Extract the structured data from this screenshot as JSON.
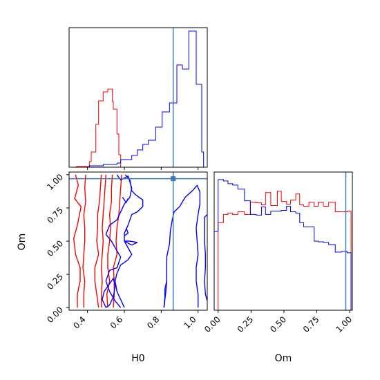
{
  "chart_data": {
    "type": "corner",
    "params": [
      "H0",
      "Om"
    ],
    "truth": {
      "H0": 0.865,
      "Om": 0.97,
      "color": "#3b78b0"
    },
    "series": [
      {
        "color": "#ff0000"
      },
      {
        "color": "#0000ff"
      }
    ],
    "hist_H0": {
      "type": "histogram",
      "range": [
        0.3,
        1.05
      ],
      "ylim": [
        0,
        1
      ],
      "bins": [
        {
          "x0": 0.3,
          "x1": 0.34,
          "red": 0.0,
          "blue": 0.0
        },
        {
          "x0": 0.34,
          "x1": 0.41,
          "red": 0.005,
          "blue": 0.0
        },
        {
          "x0": 0.41,
          "x1": 0.42,
          "red": 0.04,
          "blue": 0.01
        },
        {
          "x0": 0.42,
          "x1": 0.445,
          "red": 0.11,
          "blue": 0.01
        },
        {
          "x0": 0.445,
          "x1": 0.46,
          "red": 0.31,
          "blue": 0.01
        },
        {
          "x0": 0.46,
          "x1": 0.485,
          "red": 0.48,
          "blue": 0.01
        },
        {
          "x0": 0.485,
          "x1": 0.51,
          "red": 0.545,
          "blue": 0.02
        },
        {
          "x0": 0.51,
          "x1": 0.535,
          "red": 0.565,
          "blue": 0.02
        },
        {
          "x0": 0.535,
          "x1": 0.54,
          "red": 0.475,
          "blue": 0.02
        },
        {
          "x0": 0.54,
          "x1": 0.56,
          "red": 0.42,
          "blue": 0.02
        },
        {
          "x0": 0.56,
          "x1": 0.57,
          "red": 0.24,
          "blue": 0.03
        },
        {
          "x0": 0.57,
          "x1": 0.58,
          "red": 0.09,
          "blue": 0.03
        },
        {
          "x0": 0.58,
          "x1": 0.61,
          "red": 0.0,
          "blue": 0.055
        },
        {
          "x0": 0.61,
          "x1": 0.64,
          "red": 0.0,
          "blue": 0.055
        },
        {
          "x0": 0.64,
          "x1": 0.67,
          "red": 0.0,
          "blue": 0.085
        },
        {
          "x0": 0.67,
          "x1": 0.7,
          "red": 0.0,
          "blue": 0.125
        },
        {
          "x0": 0.7,
          "x1": 0.73,
          "red": 0.0,
          "blue": 0.165
        },
        {
          "x0": 0.73,
          "x1": 0.77,
          "red": 0.0,
          "blue": 0.195
        },
        {
          "x0": 0.77,
          "x1": 0.805,
          "red": 0.0,
          "blue": 0.29
        },
        {
          "x0": 0.805,
          "x1": 0.845,
          "red": 0.0,
          "blue": 0.4
        },
        {
          "x0": 0.845,
          "x1": 0.885,
          "red": 0.0,
          "blue": 0.465
        },
        {
          "x0": 0.885,
          "x1": 0.915,
          "red": 0.0,
          "blue": 0.74
        },
        {
          "x0": 0.915,
          "x1": 0.95,
          "red": 0.0,
          "blue": 0.71
        },
        {
          "x0": 0.95,
          "x1": 0.99,
          "red": 0.0,
          "blue": 0.985
        },
        {
          "x0": 0.99,
          "x1": 1.02,
          "red": 0.0,
          "blue": 0.6
        },
        {
          "x0": 1.02,
          "x1": 1.03,
          "red": 0.0,
          "blue": 0.11
        },
        {
          "x0": 1.03,
          "x1": 1.05,
          "red": 0.0,
          "blue": 0.0
        }
      ]
    },
    "hist_Om": {
      "type": "histogram",
      "range": [
        -0.03,
        1.02
      ],
      "ylim": [
        0,
        1
      ],
      "bins": [
        {
          "x0": -0.03,
          "x1": 0.0,
          "red": 0.0,
          "blue": 0.575
        },
        {
          "x0": 0.0,
          "x1": 0.04,
          "red": 0.64,
          "blue": 0.955
        },
        {
          "x0": 0.04,
          "x1": 0.075,
          "red": 0.7,
          "blue": 0.945
        },
        {
          "x0": 0.075,
          "x1": 0.11,
          "red": 0.71,
          "blue": 0.925
        },
        {
          "x0": 0.11,
          "x1": 0.15,
          "red": 0.7,
          "blue": 0.915
        },
        {
          "x0": 0.15,
          "x1": 0.2,
          "red": 0.72,
          "blue": 0.885
        },
        {
          "x0": 0.2,
          "x1": 0.245,
          "red": 0.7,
          "blue": 0.8
        },
        {
          "x0": 0.245,
          "x1": 0.29,
          "red": 0.79,
          "blue": 0.7
        },
        {
          "x0": 0.29,
          "x1": 0.33,
          "red": 0.785,
          "blue": 0.695
        },
        {
          "x0": 0.33,
          "x1": 0.36,
          "red": 0.77,
          "blue": 0.755
        },
        {
          "x0": 0.36,
          "x1": 0.4,
          "red": 0.86,
          "blue": 0.7
        },
        {
          "x0": 0.4,
          "x1": 0.45,
          "red": 0.765,
          "blue": 0.725
        },
        {
          "x0": 0.45,
          "x1": 0.48,
          "red": 0.87,
          "blue": 0.725
        },
        {
          "x0": 0.48,
          "x1": 0.52,
          "red": 0.795,
          "blue": 0.73
        },
        {
          "x0": 0.52,
          "x1": 0.55,
          "red": 0.775,
          "blue": 0.76
        },
        {
          "x0": 0.55,
          "x1": 0.59,
          "red": 0.805,
          "blue": 0.72
        },
        {
          "x0": 0.59,
          "x1": 0.62,
          "red": 0.85,
          "blue": 0.71
        },
        {
          "x0": 0.62,
          "x1": 0.65,
          "red": 0.77,
          "blue": 0.64
        },
        {
          "x0": 0.65,
          "x1": 0.69,
          "red": 0.76,
          "blue": 0.61
        },
        {
          "x0": 0.69,
          "x1": 0.73,
          "red": 0.79,
          "blue": 0.61
        },
        {
          "x0": 0.73,
          "x1": 0.76,
          "red": 0.76,
          "blue": 0.505
        },
        {
          "x0": 0.76,
          "x1": 0.8,
          "red": 0.79,
          "blue": 0.5
        },
        {
          "x0": 0.8,
          "x1": 0.84,
          "red": 0.76,
          "blue": 0.495
        },
        {
          "x0": 0.84,
          "x1": 0.89,
          "red": 0.79,
          "blue": 0.48
        },
        {
          "x0": 0.89,
          "x1": 0.94,
          "red": 0.72,
          "blue": 0.425
        },
        {
          "x0": 0.94,
          "x1": 0.98,
          "red": 0.72,
          "blue": 0.43
        },
        {
          "x0": 0.98,
          "x1": 1.01,
          "red": 0.725,
          "blue": 0.42
        },
        {
          "x0": 1.01,
          "x1": 1.02,
          "red": 0.0,
          "blue": 0.0
        }
      ]
    },
    "scatter_2d": {
      "type": "contour",
      "xlim": [
        0.3,
        1.05
      ],
      "ylim": [
        -0.02,
        1.02
      ],
      "contours": [
        {
          "series": 0,
          "points": [
            [
              0.335,
              1.0
            ],
            [
              0.35,
              0.92
            ],
            [
              0.33,
              0.82
            ],
            [
              0.365,
              0.76
            ],
            [
              0.345,
              0.62
            ],
            [
              0.325,
              0.52
            ],
            [
              0.335,
              0.4
            ],
            [
              0.36,
              0.3
            ],
            [
              0.36,
              0.2
            ],
            [
              0.345,
              0.1
            ],
            [
              0.345,
              0.0
            ]
          ]
        },
        {
          "series": 0,
          "points": [
            [
              0.39,
              1.0
            ],
            [
              0.385,
              0.9
            ],
            [
              0.39,
              0.8
            ],
            [
              0.38,
              0.7
            ],
            [
              0.385,
              0.6
            ],
            [
              0.385,
              0.5
            ],
            [
              0.38,
              0.4
            ],
            [
              0.375,
              0.3
            ],
            [
              0.385,
              0.2
            ],
            [
              0.38,
              0.1
            ],
            [
              0.38,
              0.0
            ]
          ]
        },
        {
          "series": 0,
          "points": [
            [
              0.475,
              1.0
            ],
            [
              0.47,
              0.9
            ],
            [
              0.465,
              0.8
            ],
            [
              0.455,
              0.7
            ],
            [
              0.455,
              0.6
            ],
            [
              0.45,
              0.5
            ],
            [
              0.46,
              0.4
            ],
            [
              0.44,
              0.3
            ],
            [
              0.44,
              0.2
            ],
            [
              0.45,
              0.1
            ],
            [
              0.46,
              0.0
            ]
          ]
        },
        {
          "series": 0,
          "points": [
            [
              0.5,
              1.0
            ],
            [
              0.495,
              0.9
            ],
            [
              0.49,
              0.8
            ],
            [
              0.485,
              0.7
            ],
            [
              0.48,
              0.6
            ],
            [
              0.485,
              0.5
            ],
            [
              0.48,
              0.4
            ],
            [
              0.475,
              0.3
            ],
            [
              0.48,
              0.2
            ],
            [
              0.475,
              0.1
            ],
            [
              0.475,
              0.0
            ]
          ]
        },
        {
          "series": 0,
          "points": [
            [
              0.535,
              1.0
            ],
            [
              0.53,
              0.9
            ],
            [
              0.53,
              0.8
            ],
            [
              0.52,
              0.7
            ],
            [
              0.525,
              0.6
            ],
            [
              0.52,
              0.5
            ],
            [
              0.51,
              0.4
            ],
            [
              0.51,
              0.3
            ],
            [
              0.52,
              0.2
            ],
            [
              0.505,
              0.1
            ],
            [
              0.51,
              0.0
            ]
          ]
        },
        {
          "series": 0,
          "points": [
            [
              0.585,
              1.0
            ],
            [
              0.58,
              0.9
            ],
            [
              0.575,
              0.8
            ],
            [
              0.57,
              0.7
            ],
            [
              0.56,
              0.6
            ],
            [
              0.555,
              0.5
            ],
            [
              0.56,
              0.4
            ],
            [
              0.54,
              0.3
            ],
            [
              0.545,
              0.2
            ],
            [
              0.545,
              0.1
            ],
            [
              0.54,
              0.0
            ]
          ]
        },
        {
          "series": 1,
          "points": [
            [
              0.56,
              1.0
            ],
            [
              0.58,
              0.96
            ],
            [
              0.62,
              0.99
            ],
            [
              0.64,
              0.9
            ],
            [
              0.63,
              0.83
            ],
            [
              0.6,
              0.78
            ],
            [
              0.58,
              0.72
            ],
            [
              0.56,
              0.66
            ],
            [
              0.52,
              0.62
            ],
            [
              0.5,
              0.55
            ],
            [
              0.53,
              0.5
            ],
            [
              0.55,
              0.45
            ],
            [
              0.58,
              0.38
            ],
            [
              0.56,
              0.3
            ],
            [
              0.52,
              0.28
            ],
            [
              0.5,
              0.2
            ],
            [
              0.52,
              0.12
            ],
            [
              0.55,
              0.05
            ],
            [
              0.58,
              0.0
            ]
          ]
        },
        {
          "series": 1,
          "points": [
            [
              0.605,
              1.0
            ],
            [
              0.63,
              0.96
            ],
            [
              0.64,
              0.88
            ],
            [
              0.66,
              0.85
            ],
            [
              0.7,
              0.81
            ],
            [
              0.7,
              0.76
            ],
            [
              0.67,
              0.72
            ],
            [
              0.64,
              0.7
            ],
            [
              0.62,
              0.62
            ],
            [
              0.6,
              0.56
            ],
            [
              0.6,
              0.5
            ],
            [
              0.62,
              0.45
            ],
            [
              0.64,
              0.4
            ],
            [
              0.62,
              0.36
            ],
            [
              0.58,
              0.32
            ],
            [
              0.56,
              0.26
            ],
            [
              0.55,
              0.2
            ],
            [
              0.56,
              0.12
            ],
            [
              0.58,
              0.06
            ],
            [
              0.6,
              0.0
            ]
          ]
        },
        {
          "series": 1,
          "points": [
            [
              0.5,
              0.0
            ],
            [
              0.48,
              0.06
            ],
            [
              0.49,
              0.12
            ],
            [
              0.52,
              0.18
            ],
            [
              0.54,
              0.22
            ],
            [
              0.55,
              0.16
            ],
            [
              0.54,
              0.08
            ],
            [
              0.52,
              0.02
            ],
            [
              0.5,
              0.0
            ]
          ]
        },
        {
          "series": 1,
          "points": [
            [
              0.6,
              0.5
            ],
            [
              0.63,
              0.5
            ],
            [
              0.67,
              0.49
            ],
            [
              0.64,
              0.47
            ],
            [
              0.6,
              0.5
            ]
          ]
        },
        {
          "series": 1,
          "points": [
            [
              0.61,
              0.6
            ],
            [
              0.62,
              0.56
            ],
            [
              0.6,
              0.54
            ]
          ]
        },
        {
          "series": 1,
          "points": [
            [
              0.59,
              0.83
            ],
            [
              0.61,
              0.79
            ],
            [
              0.62,
              0.82
            ]
          ]
        },
        {
          "series": 1,
          "points": [
            [
              0.815,
              0.0
            ],
            [
              0.82,
              0.06
            ],
            [
              0.825,
              0.12
            ],
            [
              0.83,
              0.2
            ],
            [
              0.83,
              0.28
            ],
            [
              0.83,
              0.38
            ],
            [
              0.845,
              0.48
            ],
            [
              0.85,
              0.58
            ],
            [
              0.86,
              0.66
            ],
            [
              0.87,
              0.72
            ],
            [
              0.9,
              0.76
            ],
            [
              0.93,
              0.83
            ],
            [
              0.97,
              0.88
            ],
            [
              0.995,
              0.92
            ],
            [
              1.01,
              0.87
            ],
            [
              1.01,
              0.78
            ],
            [
              1.0,
              0.7
            ],
            [
              0.99,
              0.6
            ],
            [
              0.995,
              0.5
            ],
            [
              1.0,
              0.4
            ],
            [
              0.99,
              0.3
            ],
            [
              0.99,
              0.2
            ],
            [
              1.0,
              0.1
            ],
            [
              1.0,
              0.0
            ]
          ]
        },
        {
          "series": 1,
          "points": [
            [
              0.815,
              0.0
            ],
            [
              0.82,
              0.08
            ],
            [
              0.82,
              0.14
            ],
            [
              0.83,
              0.2
            ]
          ]
        },
        {
          "series": 1,
          "points": [
            [
              1.05,
              0.7
            ],
            [
              1.035,
              0.68
            ],
            [
              1.035,
              0.6
            ],
            [
              1.035,
              0.5
            ],
            [
              1.04,
              0.4
            ],
            [
              1.04,
              0.3
            ],
            [
              1.035,
              0.2
            ],
            [
              1.04,
              0.1
            ],
            [
              1.05,
              0.05
            ]
          ]
        }
      ]
    },
    "axes": {
      "h0_ticks": [
        "0.4",
        "0.6",
        "0.8",
        "1.0"
      ],
      "om_ticks": [
        "0.00",
        "0.25",
        "0.50",
        "0.75",
        "1.00"
      ],
      "xlabel_left": "H0",
      "xlabel_right": "Om",
      "ylabel_left": "Om"
    }
  }
}
